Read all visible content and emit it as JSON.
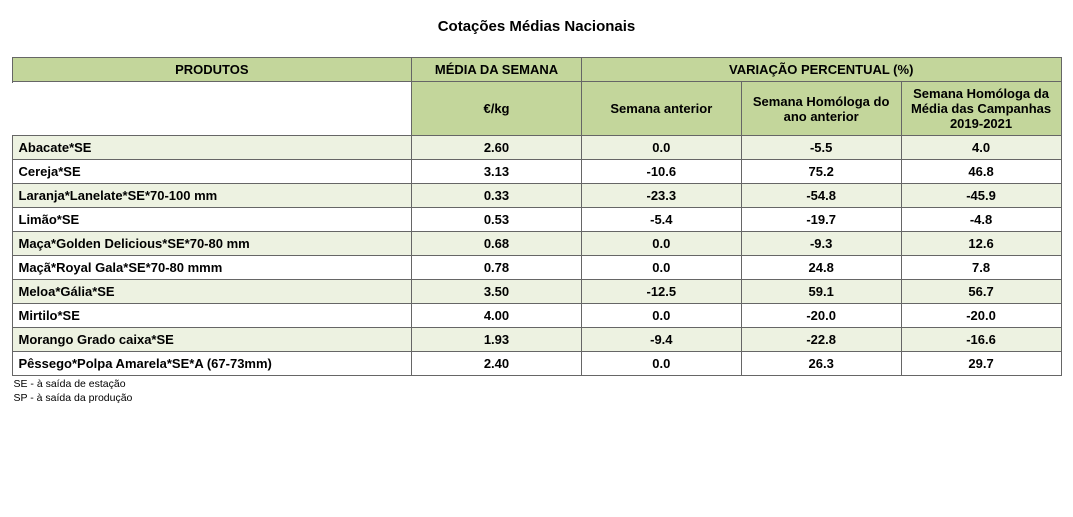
{
  "title": "Cotações Médias Nacionais",
  "headers": {
    "produtos": "PRODUTOS",
    "media_semana": "MÉDIA DA SEMANA",
    "media_unit": "€/kg",
    "variacao": "VARIAÇÃO PERCENTUAL (%)",
    "semana_anterior": "Semana anterior",
    "semana_homologa_ano": "Semana Homóloga do ano anterior",
    "semana_homologa_media": "Semana Homóloga da Média das Campanhas 2019-2021"
  },
  "rows": [
    {
      "produto": "Abacate*SE",
      "media": "2.60",
      "v1": "0.0",
      "v2": "-5.5",
      "v3": "4.0"
    },
    {
      "produto": "Cereja*SE",
      "media": "3.13",
      "v1": "-10.6",
      "v2": "75.2",
      "v3": "46.8"
    },
    {
      "produto": "Laranja*Lanelate*SE*70-100 mm",
      "media": "0.33",
      "v1": "-23.3",
      "v2": "-54.8",
      "v3": "-45.9"
    },
    {
      "produto": "Limão*SE",
      "media": "0.53",
      "v1": "-5.4",
      "v2": "-19.7",
      "v3": "-4.8"
    },
    {
      "produto": "Maça*Golden Delicious*SE*70-80 mm",
      "media": "0.68",
      "v1": "0.0",
      "v2": "-9.3",
      "v3": "12.6"
    },
    {
      "produto": "Maçã*Royal Gala*SE*70-80 mmm",
      "media": "0.78",
      "v1": "0.0",
      "v2": "24.8",
      "v3": "7.8"
    },
    {
      "produto": "Meloa*Gália*SE",
      "media": "3.50",
      "v1": "-12.5",
      "v2": "59.1",
      "v3": "56.7"
    },
    {
      "produto": "Mirtilo*SE",
      "media": "4.00",
      "v1": "0.0",
      "v2": "-20.0",
      "v3": "-20.0"
    },
    {
      "produto": "Morango Grado caixa*SE",
      "media": "1.93",
      "v1": "-9.4",
      "v2": "-22.8",
      "v3": "-16.6"
    },
    {
      "produto": "Pêssego*Polpa Amarela*SE*A (67-73mm)",
      "media": "2.40",
      "v1": "0.0",
      "v2": "26.3",
      "v3": "29.7"
    }
  ],
  "footnotes": [
    "SE - à saída de estação",
    "SP - à saída da produção"
  ],
  "colors": {
    "header_bg": "#c3d69b",
    "row_odd_bg": "#edf2e1",
    "row_even_bg": "#ffffff",
    "border": "#666666",
    "text": "#000000"
  }
}
